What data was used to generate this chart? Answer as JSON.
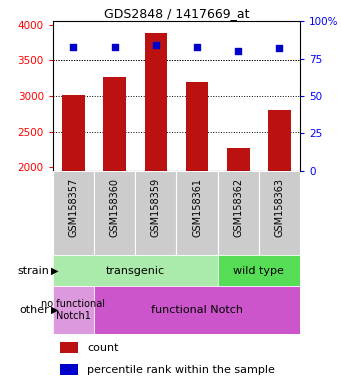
{
  "title": "GDS2848 / 1417669_at",
  "samples": [
    "GSM158357",
    "GSM158360",
    "GSM158359",
    "GSM158361",
    "GSM158362",
    "GSM158363"
  ],
  "counts": [
    3020,
    3260,
    3880,
    3190,
    2270,
    2810
  ],
  "percentiles": [
    83,
    83,
    84,
    83,
    80,
    82
  ],
  "ylim_left": [
    1950,
    4050
  ],
  "yticks_left": [
    2000,
    2500,
    3000,
    3500,
    4000
  ],
  "yticks_right": [
    0,
    25,
    50,
    75,
    100
  ],
  "bar_color": "#bb1111",
  "dot_color": "#0000cc",
  "bar_width": 0.55,
  "strain_transgenic_label": "transgenic",
  "strain_wildtype_label": "wild type",
  "other_nofunc_label": "no functional\nNotch1",
  "other_func_label": "functional Notch",
  "strain_trans_color": "#aaeaaa",
  "strain_wt_color": "#55dd55",
  "other_nofunc_color": "#dd99dd",
  "other_func_color": "#cc55cc",
  "xtick_bg_color": "#cccccc",
  "legend_count_color": "#bb1111",
  "legend_pct_color": "#0000cc"
}
